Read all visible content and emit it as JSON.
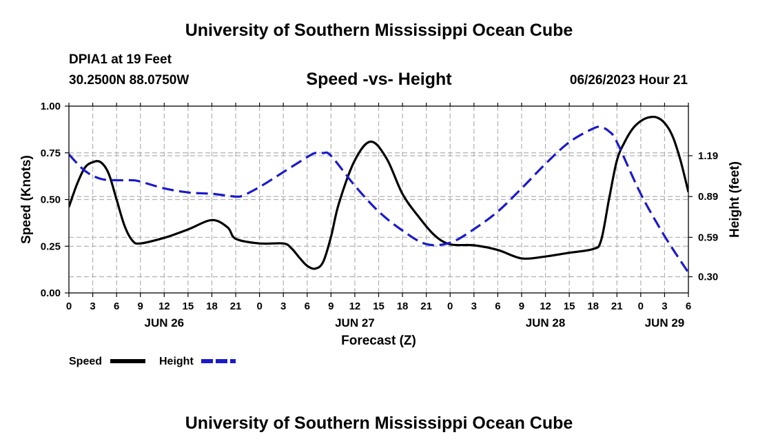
{
  "header": {
    "title": "University of Southern Mississippi Ocean Cube",
    "station": "DPIA1 at 19 Feet",
    "coords": "30.2500N  88.0750W",
    "subtitle": "Speed -vs- Height",
    "datetime": "06/26/2023 Hour 21"
  },
  "footer": {
    "title": "University of Southern Mississippi Ocean Cube"
  },
  "colors": {
    "speed": "#000000",
    "height": "#1a1acc",
    "grid": "#b0b0b0"
  },
  "chart_data": {
    "type": "line",
    "title": "Speed -vs- Height",
    "xlabel": "Forecast (Z)",
    "ylabel": "Speed (Knots)",
    "y2label": "Height (feet)",
    "xlim": [
      0,
      78
    ],
    "ylim": [
      0,
      1.0
    ],
    "y2lim": [
      0.181,
      1.555
    ],
    "x_ticks": [
      0,
      3,
      6,
      9,
      12,
      15,
      18,
      21,
      24,
      27,
      30,
      33,
      36,
      39,
      42,
      45,
      48,
      51,
      54,
      57,
      60,
      63,
      66,
      69,
      72,
      75,
      78
    ],
    "x_tick_labels": [
      "0",
      "3",
      "6",
      "9",
      "12",
      "15",
      "18",
      "21",
      "0",
      "3",
      "6",
      "9",
      "12",
      "15",
      "18",
      "21",
      "0",
      "3",
      "6",
      "9",
      "12",
      "15",
      "18",
      "21",
      "0",
      "3",
      "6"
    ],
    "date_labels": [
      {
        "x": 12,
        "label": "JUN 26"
      },
      {
        "x": 36,
        "label": "JUN 27"
      },
      {
        "x": 60,
        "label": "JUN 28"
      },
      {
        "x": 75,
        "label": "JUN 29"
      }
    ],
    "y_ticks": [
      0.0,
      0.25,
      0.5,
      0.75,
      1.0
    ],
    "y_tick_labels": [
      "0.00",
      "0.25",
      "0.50",
      "0.75",
      "1.00"
    ],
    "y2_ticks": [
      0.3,
      0.59,
      0.89,
      1.19
    ],
    "y2_tick_labels": [
      "0.30",
      "0.59",
      "0.89",
      "1.19"
    ],
    "legend": [
      {
        "name": "Speed",
        "style": "solid"
      },
      {
        "name": "Height",
        "style": "dashed"
      }
    ],
    "series": [
      {
        "name": "Speed",
        "axis": "left",
        "x": [
          0,
          1,
          2,
          3,
          4,
          5,
          6,
          7,
          8,
          9,
          12,
          15,
          18,
          20,
          21,
          24,
          27,
          28,
          29,
          30,
          31,
          32,
          33,
          34,
          36,
          38,
          40,
          42,
          44,
          46,
          48,
          51,
          54,
          57,
          60,
          63,
          66,
          67,
          68,
          69,
          70,
          71,
          72,
          73,
          74,
          75,
          76,
          77,
          78
        ],
        "values": [
          0.46,
          0.58,
          0.67,
          0.7,
          0.7,
          0.64,
          0.5,
          0.36,
          0.28,
          0.265,
          0.295,
          0.34,
          0.39,
          0.35,
          0.29,
          0.265,
          0.265,
          0.24,
          0.19,
          0.145,
          0.13,
          0.165,
          0.3,
          0.48,
          0.71,
          0.81,
          0.72,
          0.53,
          0.41,
          0.31,
          0.26,
          0.255,
          0.23,
          0.185,
          0.195,
          0.215,
          0.235,
          0.28,
          0.5,
          0.71,
          0.81,
          0.88,
          0.92,
          0.94,
          0.94,
          0.91,
          0.84,
          0.71,
          0.54
        ]
      },
      {
        "name": "Height",
        "axis": "right",
        "x": [
          0,
          2,
          4,
          6,
          8,
          9,
          12,
          15,
          18,
          21,
          22,
          24,
          27,
          30,
          31,
          32,
          33,
          36,
          39,
          42,
          45,
          48,
          51,
          54,
          57,
          60,
          63,
          66,
          67,
          68,
          69,
          72,
          75,
          78
        ],
        "values": [
          1.2,
          1.08,
          1.02,
          1.01,
          1.01,
          1.0,
          0.95,
          0.92,
          0.91,
          0.89,
          0.9,
          0.96,
          1.07,
          1.18,
          1.21,
          1.21,
          1.19,
          0.97,
          0.78,
          0.64,
          0.54,
          0.55,
          0.65,
          0.78,
          0.95,
          1.13,
          1.29,
          1.39,
          1.4,
          1.37,
          1.29,
          0.91,
          0.6,
          0.33
        ]
      }
    ]
  }
}
